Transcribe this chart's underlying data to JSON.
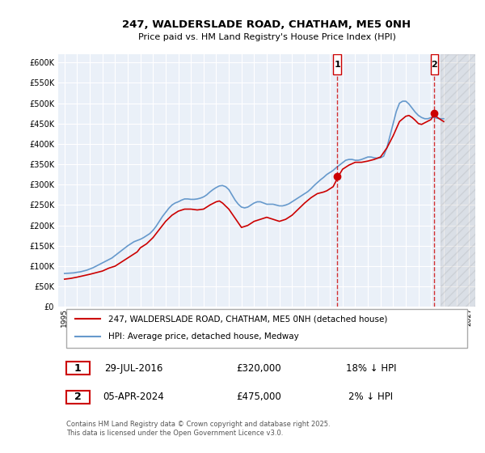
{
  "title": "247, WALDERSLADE ROAD, CHATHAM, ME5 0NH",
  "subtitle": "Price paid vs. HM Land Registry's House Price Index (HPI)",
  "ylabel_ticks": [
    0,
    50000,
    100000,
    150000,
    200000,
    250000,
    300000,
    350000,
    400000,
    450000,
    500000,
    550000,
    600000
  ],
  "ylim": [
    0,
    620000
  ],
  "xlim": [
    1994.5,
    2027.5
  ],
  "xticks": [
    1995,
    1996,
    1997,
    1998,
    1999,
    2000,
    2001,
    2002,
    2003,
    2004,
    2005,
    2006,
    2007,
    2008,
    2009,
    2010,
    2011,
    2012,
    2013,
    2014,
    2015,
    2016,
    2017,
    2018,
    2019,
    2020,
    2021,
    2022,
    2023,
    2024,
    2025,
    2026,
    2027
  ],
  "purchase1_x": 2016.57,
  "purchase1_y": 320000,
  "purchase2_x": 2024.26,
  "purchase2_y": 475000,
  "legend_line1": "247, WALDERSLADE ROAD, CHATHAM, ME5 0NH (detached house)",
  "legend_line2": "HPI: Average price, detached house, Medway",
  "annotation1_date": "29-JUL-2016",
  "annotation1_price": "£320,000",
  "annotation1_hpi": "18% ↓ HPI",
  "annotation2_date": "05-APR-2024",
  "annotation2_price": "£475,000",
  "annotation2_hpi": "2% ↓ HPI",
  "footnote": "Contains HM Land Registry data © Crown copyright and database right 2025.\nThis data is licensed under the Open Government Licence v3.0.",
  "line_color_red": "#cc0000",
  "line_color_blue": "#6699cc",
  "bg_color": "#eaf0f8",
  "grid_color": "#ffffff",
  "hpi_years": [
    1995.0,
    1995.25,
    1995.5,
    1995.75,
    1996.0,
    1996.25,
    1996.5,
    1996.75,
    1997.0,
    1997.25,
    1997.5,
    1997.75,
    1998.0,
    1998.25,
    1998.5,
    1998.75,
    1999.0,
    1999.25,
    1999.5,
    1999.75,
    2000.0,
    2000.25,
    2000.5,
    2000.75,
    2001.0,
    2001.25,
    2001.5,
    2001.75,
    2002.0,
    2002.25,
    2002.5,
    2002.75,
    2003.0,
    2003.25,
    2003.5,
    2003.75,
    2004.0,
    2004.25,
    2004.5,
    2004.75,
    2005.0,
    2005.25,
    2005.5,
    2005.75,
    2006.0,
    2006.25,
    2006.5,
    2006.75,
    2007.0,
    2007.25,
    2007.5,
    2007.75,
    2008.0,
    2008.25,
    2008.5,
    2008.75,
    2009.0,
    2009.25,
    2009.5,
    2009.75,
    2010.0,
    2010.25,
    2010.5,
    2010.75,
    2011.0,
    2011.25,
    2011.5,
    2011.75,
    2012.0,
    2012.25,
    2012.5,
    2012.75,
    2013.0,
    2013.25,
    2013.5,
    2013.75,
    2014.0,
    2014.25,
    2014.5,
    2014.75,
    2015.0,
    2015.25,
    2015.5,
    2015.75,
    2016.0,
    2016.25,
    2016.5,
    2016.75,
    2017.0,
    2017.25,
    2017.5,
    2017.75,
    2018.0,
    2018.25,
    2018.5,
    2018.75,
    2019.0,
    2019.25,
    2019.5,
    2019.75,
    2020.0,
    2020.25,
    2020.5,
    2020.75,
    2021.0,
    2021.25,
    2021.5,
    2021.75,
    2022.0,
    2022.25,
    2022.5,
    2022.75,
    2023.0,
    2023.25,
    2023.5,
    2023.75,
    2024.0,
    2024.25,
    2024.5,
    2024.75,
    2025.0
  ],
  "hpi_values": [
    82000,
    82500,
    83000,
    83500,
    85000,
    86000,
    88000,
    90000,
    93000,
    96000,
    100000,
    104000,
    108000,
    112000,
    116000,
    120000,
    126000,
    132000,
    138000,
    144000,
    150000,
    155000,
    160000,
    163000,
    166000,
    170000,
    175000,
    180000,
    188000,
    198000,
    210000,
    222000,
    232000,
    242000,
    250000,
    255000,
    258000,
    262000,
    265000,
    265000,
    264000,
    264000,
    265000,
    267000,
    270000,
    275000,
    282000,
    288000,
    293000,
    297000,
    298000,
    295000,
    288000,
    275000,
    262000,
    252000,
    245000,
    243000,
    245000,
    250000,
    255000,
    258000,
    258000,
    255000,
    252000,
    252000,
    252000,
    250000,
    248000,
    248000,
    250000,
    253000,
    258000,
    263000,
    268000,
    273000,
    278000,
    283000,
    290000,
    298000,
    305000,
    312000,
    318000,
    325000,
    330000,
    335000,
    342000,
    348000,
    354000,
    360000,
    362000,
    362000,
    360000,
    360000,
    362000,
    365000,
    368000,
    368000,
    366000,
    365000,
    366000,
    370000,
    390000,
    420000,
    450000,
    480000,
    500000,
    505000,
    505000,
    498000,
    488000,
    478000,
    470000,
    465000,
    462000,
    462000,
    465000,
    465000,
    463000,
    462000,
    462000
  ],
  "price_years": [
    1995.0,
    1995.5,
    1996.0,
    1997.0,
    1998.0,
    1998.5,
    1999.0,
    1999.5,
    2000.0,
    2000.75,
    2001.0,
    2001.5,
    2002.0,
    2002.5,
    2003.0,
    2003.5,
    2004.0,
    2004.5,
    2005.0,
    2005.5,
    2006.0,
    2006.25,
    2006.5,
    2007.0,
    2007.25,
    2007.5,
    2008.0,
    2009.0,
    2009.5,
    2010.0,
    2010.5,
    2011.0,
    2011.5,
    2012.0,
    2012.5,
    2013.0,
    2013.5,
    2014.0,
    2014.5,
    2015.0,
    2015.5,
    2015.75,
    2016.0,
    2016.25,
    2016.5,
    2016.57,
    2016.75,
    2017.0,
    2017.5,
    2018.0,
    2018.5,
    2019.0,
    2019.5,
    2020.0,
    2020.5,
    2021.0,
    2021.5,
    2022.0,
    2022.25,
    2022.5,
    2022.75,
    2023.0,
    2023.25,
    2023.5,
    2024.0,
    2024.26,
    2024.5,
    2025.0
  ],
  "price_values": [
    68000,
    70000,
    73000,
    80000,
    88000,
    95000,
    100000,
    110000,
    120000,
    135000,
    145000,
    155000,
    170000,
    190000,
    210000,
    225000,
    235000,
    240000,
    240000,
    238000,
    240000,
    245000,
    250000,
    258000,
    260000,
    255000,
    240000,
    195000,
    200000,
    210000,
    215000,
    220000,
    215000,
    210000,
    215000,
    225000,
    240000,
    255000,
    268000,
    278000,
    282000,
    285000,
    290000,
    295000,
    310000,
    320000,
    325000,
    338000,
    348000,
    355000,
    355000,
    358000,
    362000,
    368000,
    390000,
    420000,
    455000,
    468000,
    470000,
    465000,
    458000,
    450000,
    448000,
    452000,
    460000,
    475000,
    465000,
    455000
  ]
}
